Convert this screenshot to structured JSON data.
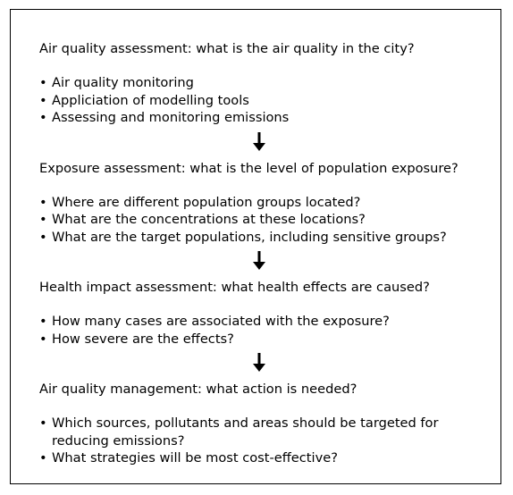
{
  "sections": [
    {
      "heading": "Air quality assessment: what is the air quality in the city?",
      "bullets": [
        "Air quality monitoring",
        "Appliciation of modelling tools",
        "Assessing and monitoring emissions"
      ]
    },
    {
      "heading": "Exposure assessment: what is the level of population exposure?",
      "bullets": [
        "Where are different population groups located?",
        "What are the concentrations at these locations?",
        "What are the target populations, including sensitive groups?"
      ]
    },
    {
      "heading": "Health impact assessment: what health effects are caused?",
      "bullets": [
        "How many cases are associated with the exposure?",
        "How severe are the effects?"
      ]
    },
    {
      "heading": "Air quality management: what action is needed?",
      "bullets": [
        "Which sources, pollutants and areas should be targeted for reducing emissions?",
        "What strategies will be most cost-effective?"
      ]
    }
  ]
}
